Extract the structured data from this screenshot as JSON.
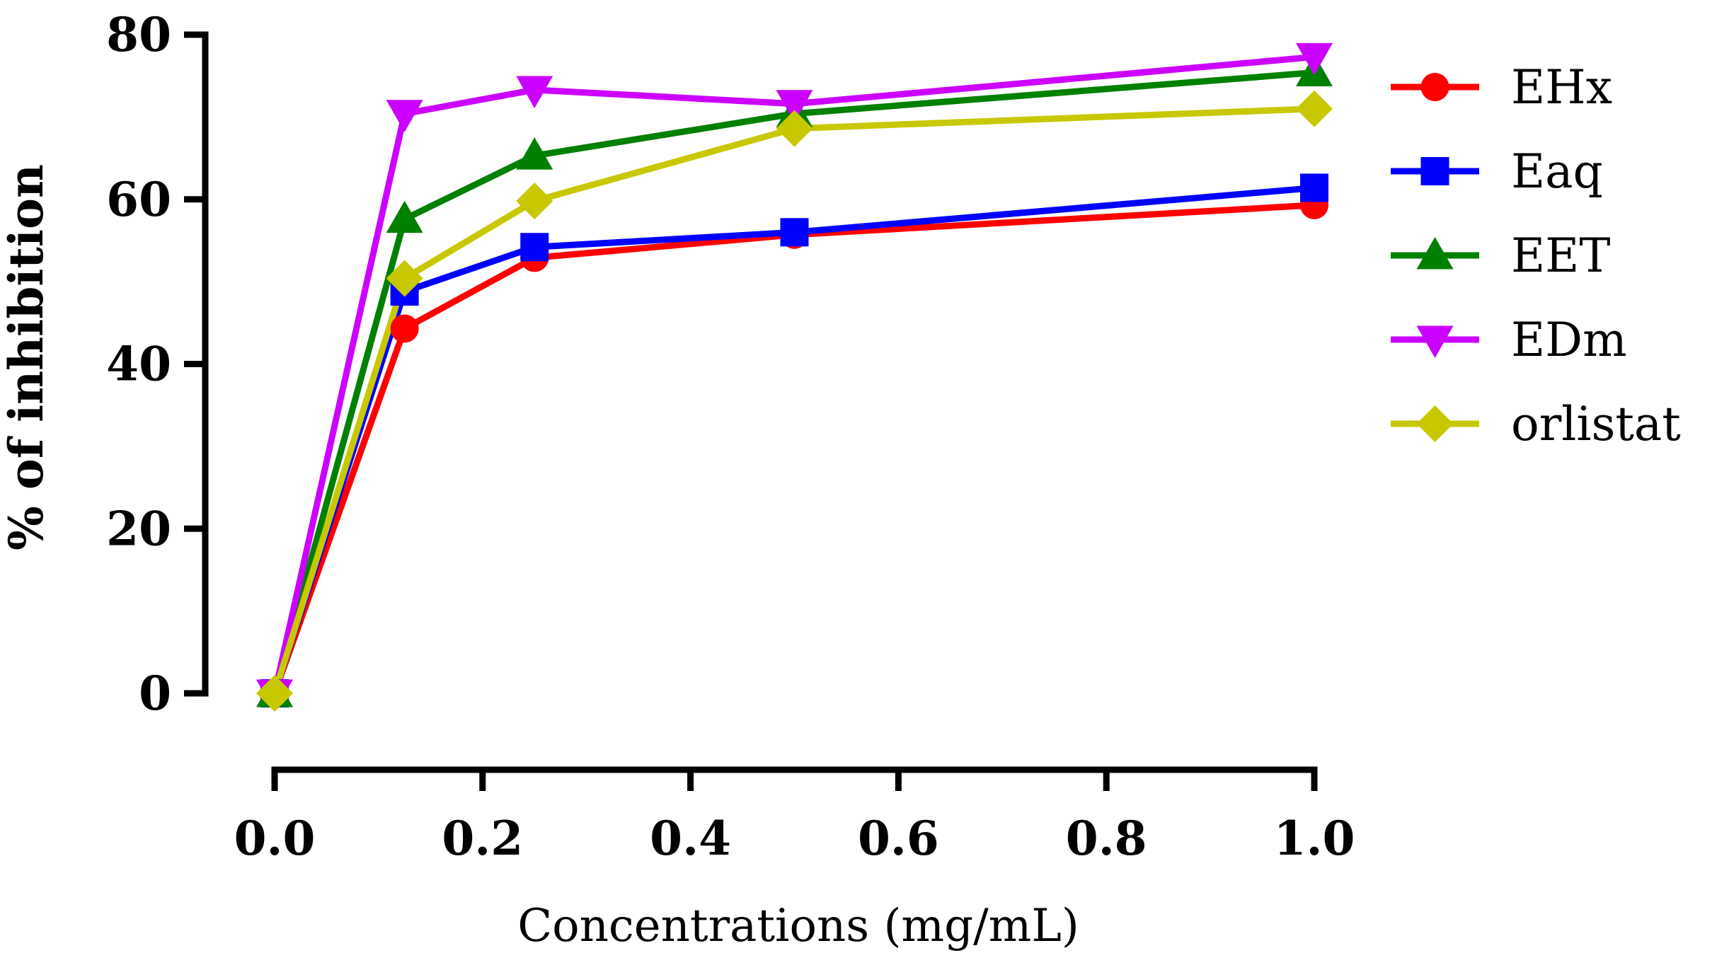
{
  "chart_data": {
    "type": "line",
    "title": "",
    "xlabel": "Concentrations (mg/mL)",
    "ylabel": "% of inhibition",
    "xlim": [
      0.0,
      1.0
    ],
    "ylim": [
      0,
      80
    ],
    "x_ticks": [
      "0.0",
      "0.2",
      "0.4",
      "0.6",
      "0.8",
      "1.0"
    ],
    "y_ticks": [
      "0",
      "20",
      "40",
      "60",
      "80"
    ],
    "grid": false,
    "legend_position": "right",
    "x": [
      0,
      0.125,
      0.25,
      0.5,
      1.0
    ],
    "series": [
      {
        "name": "EHx",
        "color": "#ff0000",
        "marker": "circle",
        "values": [
          0,
          44.3,
          52.9,
          55.7,
          59.3
        ]
      },
      {
        "name": "Eaq",
        "color": "#0000ff",
        "marker": "square",
        "values": [
          0,
          48.8,
          54.2,
          56.0,
          61.4
        ]
      },
      {
        "name": "EET",
        "color": "#008000",
        "marker": "triangle-up",
        "values": [
          0,
          57.6,
          65.3,
          70.4,
          75.4
        ]
      },
      {
        "name": "EDm",
        "color": "#cc00ff",
        "marker": "triangle-down",
        "values": [
          0,
          70.4,
          73.3,
          71.6,
          77.3
        ]
      },
      {
        "name": "orlistat",
        "color": "#c8c800",
        "marker": "diamond",
        "values": [
          0,
          50.4,
          59.8,
          68.6,
          71.0
        ]
      }
    ]
  }
}
